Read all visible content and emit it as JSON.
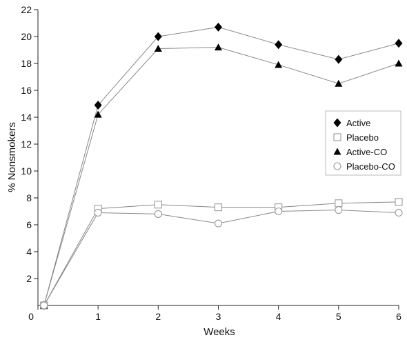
{
  "chart_data": {
    "type": "line",
    "xlabel": "Weeks",
    "ylabel": "% Nonsmokers",
    "xlim": [
      0,
      6
    ],
    "ylim": [
      0,
      22
    ],
    "xticks": [
      "0",
      "1",
      "2",
      "3",
      "4",
      "5",
      "6"
    ],
    "yticks": [
      "2",
      "4",
      "6",
      "8",
      "10",
      "12",
      "14",
      "16",
      "18",
      "20",
      "22"
    ],
    "grid": false,
    "legend_position": "right",
    "series": [
      {
        "name": "Active",
        "marker": "diamond-filled",
        "x": [
          0.1,
          1,
          2,
          3,
          4,
          5,
          6
        ],
        "y": [
          0,
          14.9,
          20.0,
          20.7,
          19.4,
          18.3,
          19.5
        ]
      },
      {
        "name": "Placebo",
        "marker": "square-open",
        "x": [
          0.1,
          1,
          2,
          3,
          4,
          5,
          6
        ],
        "y": [
          0,
          7.2,
          7.5,
          7.3,
          7.3,
          7.6,
          7.7
        ]
      },
      {
        "name": "Active-CO",
        "marker": "triangle-filled",
        "x": [
          0.1,
          1,
          2,
          3,
          4,
          5,
          6
        ],
        "y": [
          0,
          14.2,
          19.1,
          19.2,
          17.9,
          16.5,
          18.0
        ]
      },
      {
        "name": "Placebo-CO",
        "marker": "circle-open",
        "x": [
          0.1,
          1,
          2,
          3,
          4,
          5,
          6
        ],
        "y": [
          0,
          6.9,
          6.8,
          6.1,
          7.0,
          7.1,
          6.9
        ]
      }
    ],
    "colors": {
      "line": "#888888",
      "marker_fill": "#000000",
      "open_marker_stroke": "#999999",
      "axis": "#222222"
    }
  }
}
